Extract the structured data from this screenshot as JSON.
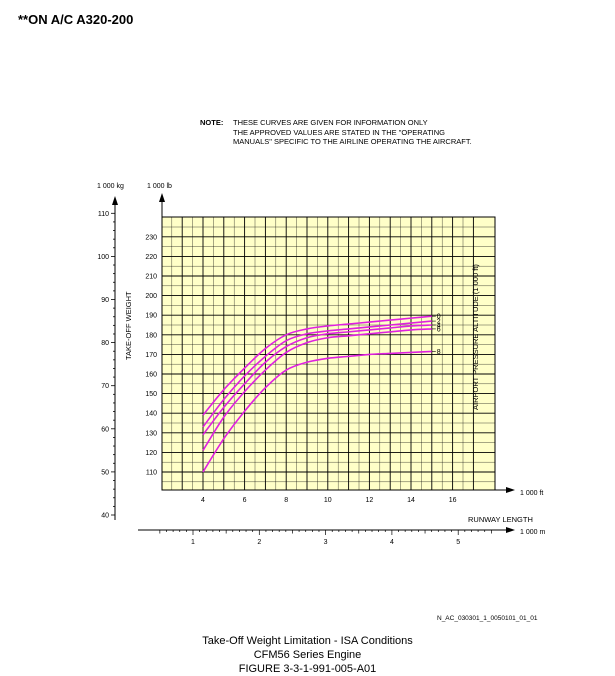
{
  "header": {
    "aircraft": "**ON A/C A320-200"
  },
  "note": {
    "label": "NOTE:",
    "lines": [
      "THESE CURVES ARE GIVEN FOR INFORMATION ONLY",
      "THE APPROVED VALUES ARE STATED IN THE \"OPERATING",
      "MANUALS\" SPECIFIC TO THE AIRLINE OPERATING THE AIRCRAFT."
    ]
  },
  "colors": {
    "plot_background": "#ffffc8",
    "curve": "#e020e0",
    "grid": "#000000"
  },
  "chart_data": {
    "type": "line",
    "ylabel": "TAKE-OFF WEIGHT",
    "xlabel": "RUNWAY LENGTH",
    "right_label": "AIRPORT PRESSURE ALTITUDE (1 000 ft)",
    "y_unit_kg": "1 000 kg",
    "y_unit_lb": "1 000 lb",
    "x_unit_ft": "1 000 ft",
    "x_unit_m": "1 000 m",
    "x_ft_range": [
      2.5,
      17
    ],
    "y_lb_range": [
      105,
      235
    ],
    "y_lb_ticks": [
      110,
      120,
      130,
      140,
      150,
      160,
      170,
      180,
      190,
      200,
      210,
      220,
      230
    ],
    "y_lb_labels": [
      "110",
      "120",
      "130",
      "140",
      "150",
      "160",
      "170",
      "180",
      "190",
      "200",
      "210",
      "220",
      "230"
    ],
    "x_ft_ticks": [
      4,
      6,
      8,
      10,
      12,
      14,
      16
    ],
    "x_ft_labels": [
      "4",
      "6",
      "8",
      "10",
      "12",
      "14",
      "16"
    ],
    "y_kg_ticks": [
      40,
      50,
      60,
      70,
      80,
      90,
      100,
      110
    ],
    "y_kg_labels": [
      "40",
      "50",
      "60",
      "70",
      "80",
      "90",
      "100",
      "110"
    ],
    "x_m_ticks": [
      1,
      2,
      3,
      4,
      5
    ],
    "x_m_labels": [
      "1",
      "2",
      "3",
      "4",
      "5"
    ],
    "series": [
      {
        "name": "0",
        "x": [
          4,
          5,
          6,
          7,
          8,
          9,
          10,
          11,
          12,
          13,
          14,
          15
        ],
        "y": [
          139,
          152,
          163,
          173,
          180,
          183,
          184.5,
          185.5,
          186.5,
          187.5,
          188.5,
          189.5
        ]
      },
      {
        "name": "2",
        "x": [
          4,
          5,
          6,
          7,
          8,
          9,
          10,
          11,
          12,
          13,
          14,
          15
        ],
        "y": [
          133,
          147,
          159,
          169,
          177,
          180.5,
          182,
          183,
          184,
          185,
          186,
          187
        ]
      },
      {
        "name": "4",
        "x": [
          4,
          5,
          6,
          7,
          8,
          9,
          10,
          11,
          12,
          13,
          14,
          15
        ],
        "y": [
          129,
          143,
          155,
          166,
          174,
          178.5,
          180.5,
          181.5,
          182.5,
          183.5,
          184.5,
          185
        ]
      },
      {
        "name": "6",
        "x": [
          4,
          5,
          6,
          7,
          8,
          9,
          10,
          11,
          12,
          13,
          14,
          15
        ],
        "y": [
          121,
          138,
          151,
          162,
          171,
          176,
          178.5,
          179.5,
          180.5,
          181.5,
          182.5,
          183
        ]
      },
      {
        "name": "8",
        "x": [
          4,
          5,
          6,
          7,
          8,
          9,
          10,
          11,
          12,
          13,
          14,
          15
        ],
        "y": [
          110,
          127,
          141,
          153,
          162,
          166,
          168,
          169,
          170,
          170.5,
          171,
          171.5
        ]
      }
    ]
  },
  "reference": "N_AC_030301_1_0050101_01_01",
  "caption": {
    "title": "Take-Off Weight Limitation - ISA Conditions",
    "engine": "CFM56 Series Engine",
    "figure": "FIGURE 3-3-1-991-005-A01"
  }
}
